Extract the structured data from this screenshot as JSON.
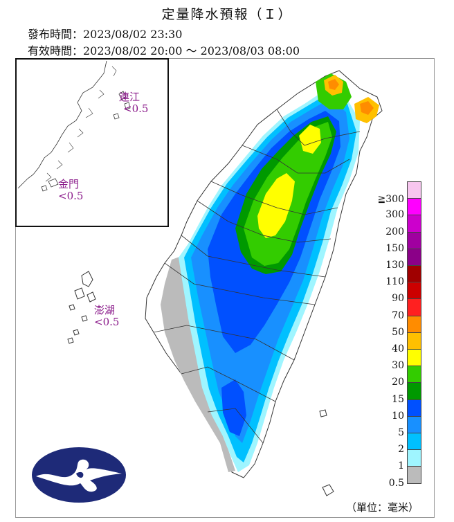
{
  "title": "定量降水預報（Ｉ）",
  "issued": "發布時間：2023/08/02 23:30",
  "valid": "有效時間：2023/08/02 20:00 ～ 2023/08/03 08:00",
  "places": {
    "matsu_name": "連江",
    "matsu_value": "<0.5",
    "kinmen_name": "金門",
    "kinmen_value": "<0.5",
    "penghu_name": "澎湖",
    "penghu_value": "<0.5"
  },
  "legend": {
    "unit": "（單位：毫米）",
    "levels": [
      {
        "label": "≧300",
        "color": "#f7c6ef"
      },
      {
        "label": "300",
        "color": "#ff00ff"
      },
      {
        "label": "200",
        "color": "#cc00cc"
      },
      {
        "label": "150",
        "color": "#a000a0"
      },
      {
        "label": "130",
        "color": "#8b0088"
      },
      {
        "label": "110",
        "color": "#a00000"
      },
      {
        "label": "90",
        "color": "#cc0000"
      },
      {
        "label": "70",
        "color": "#ff2020"
      },
      {
        "label": "50",
        "color": "#ff8c00"
      },
      {
        "label": "40",
        "color": "#ffc000"
      },
      {
        "label": "30",
        "color": "#ffff00"
      },
      {
        "label": "20",
        "color": "#33cc00"
      },
      {
        "label": "15",
        "color": "#009900"
      },
      {
        "label": "10",
        "color": "#0050ff"
      },
      {
        "label": "5",
        "color": "#1890ff"
      },
      {
        "label": "2",
        "color": "#00c0ff"
      },
      {
        "label": "1",
        "color": "#9ff5ff"
      },
      {
        "label": "0.5",
        "color": "#bbbbbb"
      }
    ]
  },
  "colors": {
    "land": "#ffffff",
    "border": "#333333",
    "logo_bg": "#1e2a78"
  },
  "logo_icon": "cwb-cloud-logo-icon"
}
